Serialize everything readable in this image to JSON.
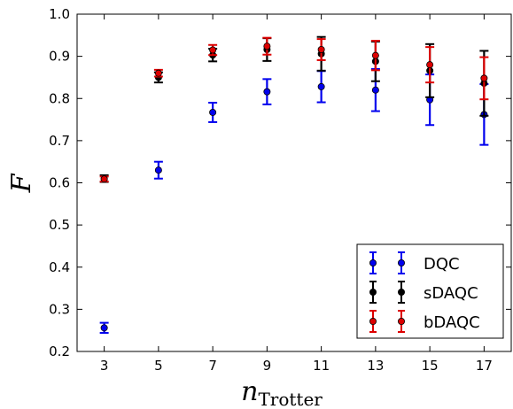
{
  "chart_data": {
    "type": "scatter",
    "xlabel": {
      "base": "n",
      "subscript": "Trotter"
    },
    "ylabel": "F",
    "xlim": [
      2,
      18
    ],
    "ylim": [
      0.2,
      1.0
    ],
    "xticks": [
      3,
      5,
      7,
      9,
      11,
      13,
      15,
      17
    ],
    "yticks": [
      0.2,
      0.3,
      0.4,
      0.5,
      0.6,
      0.7,
      0.8,
      0.9,
      1.0
    ],
    "ytick_labels": [
      "0.2",
      "0.3",
      "0.4",
      "0.5",
      "0.6",
      "0.7",
      "0.8",
      "0.9",
      "1.0"
    ],
    "grid": false,
    "legend_position": "lower-right",
    "series": [
      {
        "name": "DQC",
        "color": "#0000ee",
        "x": [
          3,
          5,
          7,
          9,
          11,
          13,
          15,
          17
        ],
        "y": [
          0.256,
          0.63,
          0.767,
          0.816,
          0.828,
          0.82,
          0.797,
          0.762
        ],
        "err": [
          0.012,
          0.02,
          0.023,
          0.03,
          0.037,
          0.05,
          0.06,
          0.072
        ]
      },
      {
        "name": "sDAQC",
        "color": "#000000",
        "x": [
          3,
          5,
          7,
          9,
          11,
          13,
          15,
          17
        ],
        "y": [
          0.61,
          0.85,
          0.903,
          0.916,
          0.906,
          0.888,
          0.866,
          0.836
        ],
        "err": [
          0.008,
          0.012,
          0.015,
          0.027,
          0.04,
          0.047,
          0.063,
          0.077
        ]
      },
      {
        "name": "bDAQC",
        "color": "#dd0000",
        "x": [
          3,
          5,
          7,
          9,
          11,
          13,
          15,
          17
        ],
        "y": [
          0.609,
          0.86,
          0.915,
          0.924,
          0.916,
          0.902,
          0.88,
          0.848
        ],
        "err": [
          0.006,
          0.008,
          0.012,
          0.02,
          0.025,
          0.035,
          0.042,
          0.05
        ]
      }
    ]
  }
}
